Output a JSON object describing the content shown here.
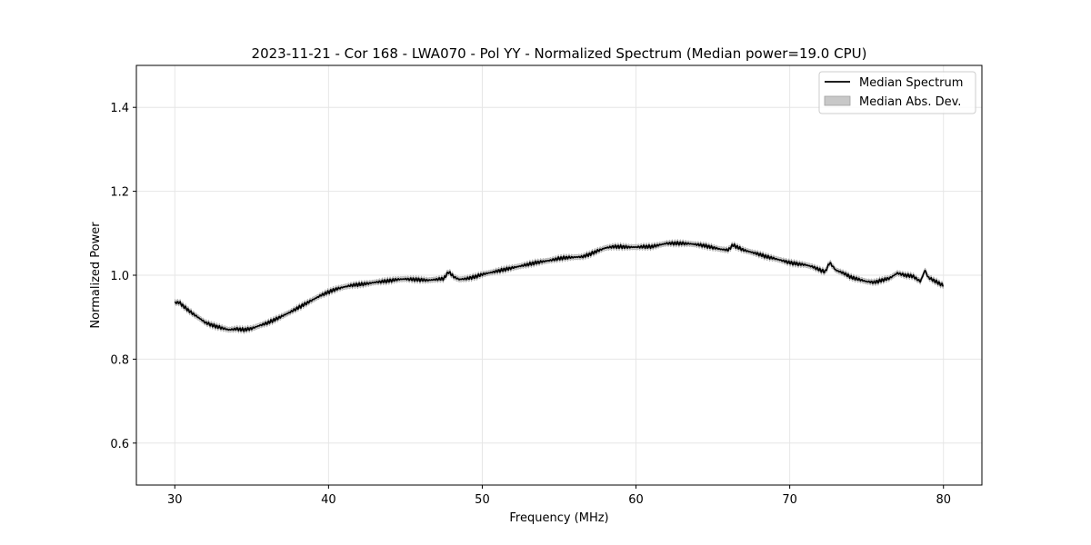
{
  "chart_data": {
    "type": "line",
    "title": "2023-11-21 - Cor 168 - LWA070 - Pol YY - Normalized Spectrum (Median power=19.0 CPU)",
    "xlabel": "Frequency (MHz)",
    "ylabel": "Normalized Power",
    "xlim": [
      27.5,
      82.5
    ],
    "ylim": [
      0.5,
      1.5
    ],
    "xticks": [
      30,
      40,
      50,
      60,
      70,
      80
    ],
    "yticks": [
      0.6,
      0.8,
      1.0,
      1.2,
      1.4
    ],
    "xtick_labels": [
      "30",
      "40",
      "50",
      "60",
      "70",
      "80"
    ],
    "ytick_labels": [
      "0.6",
      "0.8",
      "1.0",
      "1.2",
      "1.4"
    ],
    "grid": true,
    "legend_position": "top-right",
    "series": [
      {
        "name": "Median Spectrum",
        "color": "#000000",
        "x": [
          30.0,
          30.3,
          30.6,
          31.0,
          31.5,
          32.0,
          32.5,
          33.0,
          33.5,
          34.0,
          34.5,
          35.0,
          35.5,
          36.0,
          36.5,
          37.0,
          37.5,
          38.0,
          38.5,
          39.0,
          39.5,
          40.0,
          40.5,
          41.0,
          41.5,
          42.0,
          42.5,
          43.0,
          43.5,
          44.0,
          44.5,
          45.0,
          45.5,
          46.0,
          46.5,
          47.0,
          47.5,
          47.8,
          48.2,
          48.5,
          49.0,
          49.5,
          50.0,
          50.5,
          51.0,
          51.5,
          52.0,
          52.5,
          53.0,
          53.5,
          54.0,
          54.5,
          55.0,
          55.5,
          56.0,
          56.5,
          57.0,
          57.5,
          58.0,
          58.5,
          59.0,
          59.5,
          60.0,
          60.5,
          61.0,
          61.5,
          62.0,
          62.5,
          63.0,
          63.5,
          64.0,
          64.5,
          65.0,
          65.5,
          66.0,
          66.3,
          66.7,
          67.0,
          67.5,
          68.0,
          68.5,
          69.0,
          69.5,
          70.0,
          70.5,
          71.0,
          71.5,
          72.0,
          72.3,
          72.6,
          73.0,
          73.5,
          74.0,
          74.5,
          75.0,
          75.5,
          76.0,
          76.5,
          77.0,
          77.5,
          78.0,
          78.5,
          78.8,
          79.0,
          79.5,
          80.0
        ],
        "values": [
          0.935,
          0.935,
          0.925,
          0.913,
          0.9,
          0.887,
          0.88,
          0.875,
          0.87,
          0.872,
          0.87,
          0.873,
          0.88,
          0.886,
          0.894,
          0.903,
          0.912,
          0.922,
          0.932,
          0.942,
          0.952,
          0.96,
          0.967,
          0.972,
          0.976,
          0.978,
          0.98,
          0.983,
          0.985,
          0.987,
          0.99,
          0.991,
          0.99,
          0.989,
          0.988,
          0.99,
          0.992,
          1.008,
          0.995,
          0.99,
          0.992,
          0.996,
          1.002,
          1.006,
          1.01,
          1.014,
          1.018,
          1.022,
          1.026,
          1.03,
          1.033,
          1.036,
          1.04,
          1.042,
          1.043,
          1.044,
          1.05,
          1.058,
          1.065,
          1.068,
          1.068,
          1.067,
          1.067,
          1.068,
          1.068,
          1.072,
          1.076,
          1.076,
          1.076,
          1.075,
          1.073,
          1.07,
          1.066,
          1.062,
          1.06,
          1.072,
          1.065,
          1.06,
          1.055,
          1.05,
          1.044,
          1.04,
          1.035,
          1.03,
          1.027,
          1.025,
          1.02,
          1.012,
          1.008,
          1.03,
          1.012,
          1.005,
          0.995,
          0.99,
          0.985,
          0.983,
          0.988,
          0.993,
          1.005,
          1.0,
          0.998,
          0.985,
          1.012,
          0.995,
          0.985,
          0.975
        ]
      },
      {
        "name": "Median Abs. Dev.",
        "color": "#c8c8c8",
        "band_halfwidth": 0.006
      }
    ]
  }
}
